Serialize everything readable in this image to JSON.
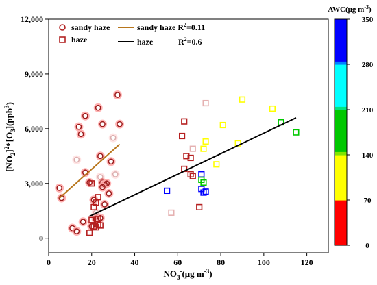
{
  "chart_data": {
    "type": "scatter",
    "xlabel_main": "NO",
    "xlabel_sub": "3",
    "xlabel_sup": "-",
    "xlabel_unit": "(μg m",
    "xlabel_unit_sup": "-3",
    "xlabel_close": ")",
    "ylabel_parts": [
      "[NO",
      "2",
      "]",
      "2",
      "*[O",
      "3",
      "](ppb",
      "3",
      ")"
    ],
    "xlim": [
      0,
      130
    ],
    "ylim": [
      -800,
      12000
    ],
    "xticks": [
      0,
      20,
      40,
      60,
      80,
      100,
      120
    ],
    "xtick_labels": [
      "0",
      "20",
      "40",
      "60",
      "80",
      "100",
      "120"
    ],
    "yticks": [
      0,
      3000,
      6000,
      9000,
      12000
    ],
    "ytick_labels": [
      "0",
      "3,000",
      "6,000",
      "9,000",
      "12,000"
    ],
    "colorbar": {
      "title": "AWC(μg m",
      "title_sup": "-3",
      "title_close": ")",
      "range": [
        0,
        350
      ],
      "ticks": [
        0,
        70,
        140,
        210,
        280,
        350
      ],
      "tick_labels": [
        "0",
        "70",
        "140",
        "210",
        "280",
        "350"
      ],
      "bands": [
        {
          "from": 0,
          "to": 70,
          "color": "#ff0000"
        },
        {
          "from": 70,
          "to": 140,
          "color": "#ffff00"
        },
        {
          "from": 140,
          "to": 210,
          "color": "#00cc00"
        },
        {
          "from": 210,
          "to": 280,
          "color": "#00ffff"
        },
        {
          "from": 280,
          "to": 350,
          "color": "#0000ff"
        }
      ]
    },
    "legend": {
      "sandy_haze_marker": "sandy haze",
      "haze_marker": "haze",
      "sandy_haze_line": "sandy haze",
      "sandy_haze_r2": "R",
      "sandy_haze_r2_sup": "2",
      "sandy_haze_r2_val": "=0.11",
      "haze_line": "haze",
      "haze_r2": "R",
      "haze_r2_sup": "2",
      "haze_r2_val": "=0.6"
    },
    "series": [
      {
        "name": "sandy haze",
        "marker": "circle",
        "points": [
          [
            5,
            2750,
            10
          ],
          [
            6,
            2200,
            10
          ],
          [
            11,
            550,
            10
          ],
          [
            13,
            380,
            10
          ],
          [
            14,
            6100,
            10
          ],
          [
            16,
            900,
            10
          ],
          [
            17,
            6700,
            10
          ],
          [
            17,
            3600,
            10
          ],
          [
            19,
            3050,
            10
          ],
          [
            20,
            650,
            10
          ],
          [
            22,
            1050,
            10
          ],
          [
            23,
            7150,
            10
          ],
          [
            24,
            4500,
            10
          ],
          [
            24,
            1100,
            10
          ],
          [
            25,
            6250,
            10
          ],
          [
            25,
            3050,
            10
          ],
          [
            26,
            1850,
            10
          ],
          [
            26,
            2950,
            10
          ],
          [
            27,
            3000,
            10
          ],
          [
            28,
            2450,
            10
          ],
          [
            32,
            7850,
            10
          ],
          [
            33,
            6250,
            10
          ],
          [
            13,
            4300,
            15
          ],
          [
            15,
            5700,
            12
          ],
          [
            21,
            2100,
            12
          ],
          [
            22,
            1400,
            15
          ],
          [
            24,
            3350,
            15
          ],
          [
            25,
            2800,
            12
          ],
          [
            30,
            5500,
            18
          ],
          [
            31,
            3500,
            15
          ],
          [
            29,
            4200,
            12
          ]
        ]
      },
      {
        "name": "haze",
        "marker": "square",
        "points": [
          [
            19,
            300,
            10
          ],
          [
            20,
            3000,
            10
          ],
          [
            20,
            1000,
            10
          ],
          [
            21,
            650,
            10
          ],
          [
            21,
            1700,
            10
          ],
          [
            22,
            600,
            10
          ],
          [
            22,
            1950,
            10
          ],
          [
            23,
            1050,
            10
          ],
          [
            23,
            2250,
            10
          ],
          [
            23,
            750,
            10
          ],
          [
            24,
            700,
            10
          ],
          [
            57,
            1400,
            15
          ],
          [
            62,
            5600,
            10
          ],
          [
            63,
            6400,
            10
          ],
          [
            63,
            3800,
            10
          ],
          [
            64,
            4500,
            10
          ],
          [
            66,
            4400,
            10
          ],
          [
            66,
            3500,
            10
          ],
          [
            67,
            3400,
            10
          ],
          [
            70,
            1700,
            10
          ],
          [
            55,
            2600,
            295
          ],
          [
            71,
            3500,
            300
          ],
          [
            71,
            2700,
            300
          ],
          [
            72,
            2500,
            300
          ],
          [
            73,
            2550,
            295
          ],
          [
            71,
            3200,
            190
          ],
          [
            72,
            3050,
            180
          ],
          [
            72,
            4900,
            115
          ],
          [
            73,
            5300,
            110
          ],
          [
            78,
            4050,
            115
          ],
          [
            81,
            6200,
            110
          ],
          [
            88,
            5200,
            115
          ],
          [
            73,
            7400,
            20
          ],
          [
            67,
            4900,
            25
          ],
          [
            108,
            6350,
            190
          ],
          [
            115,
            5800,
            190
          ],
          [
            90,
            7600,
            120
          ],
          [
            104,
            7100,
            125
          ]
        ]
      }
    ],
    "fits": [
      {
        "name": "sandy haze",
        "x": [
          5,
          33
        ],
        "y": [
          2200,
          5150
        ],
        "color": "#b8761c"
      },
      {
        "name": "haze",
        "x": [
          19,
          115
        ],
        "y": [
          1200,
          6600
        ],
        "color": "#000000"
      }
    ]
  }
}
